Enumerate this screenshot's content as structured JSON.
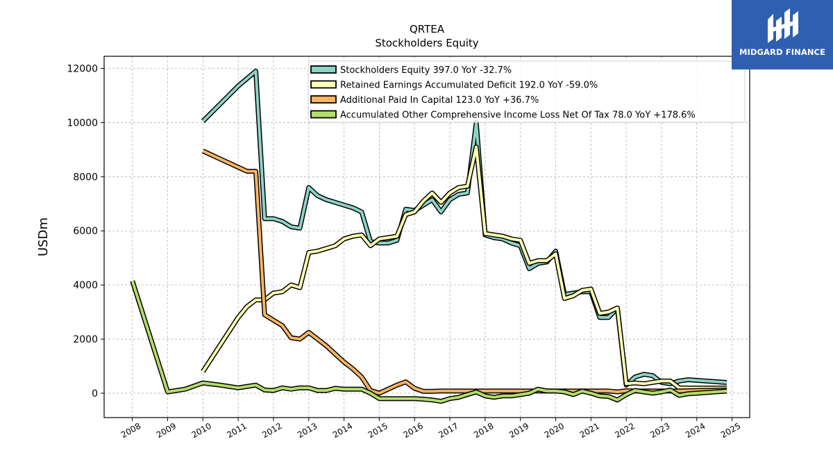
{
  "title": "QRTEA",
  "subtitle": "Stockholders  Equity",
  "brand": {
    "name": "MIDGARD FINANCE",
    "color": "#2f5fb0"
  },
  "chart_data": {
    "type": "line",
    "ylabel": "USDm",
    "xlabel": "",
    "xlim": [
      2007.2,
      2025.5
    ],
    "ylim": [
      -900,
      12450
    ],
    "yticks": [
      0,
      2000,
      4000,
      6000,
      8000,
      10000,
      12000
    ],
    "xticks": [
      2008,
      2009,
      2010,
      2011,
      2012,
      2013,
      2014,
      2015,
      2016,
      2017,
      2018,
      2019,
      2020,
      2021,
      2022,
      2023,
      2024,
      2025
    ],
    "grid": true,
    "legend_position": "top-right",
    "series": [
      {
        "name": "Stockholders Equity  397.0 YoY -32.7%",
        "color": "#8dd3c7",
        "points": [
          [
            2010,
            10050
          ],
          [
            2010.5,
            10700
          ],
          [
            2011,
            11350
          ],
          [
            2011.5,
            11900
          ],
          [
            2011.75,
            6450
          ],
          [
            2012,
            6450
          ],
          [
            2012.25,
            6350
          ],
          [
            2012.5,
            6150
          ],
          [
            2012.75,
            6100
          ],
          [
            2013,
            7600
          ],
          [
            2013.25,
            7300
          ],
          [
            2013.5,
            7150
          ],
          [
            2013.75,
            7050
          ],
          [
            2014,
            6950
          ],
          [
            2014.25,
            6850
          ],
          [
            2014.5,
            6700
          ],
          [
            2014.75,
            5600
          ],
          [
            2015,
            5550
          ],
          [
            2015.25,
            5550
          ],
          [
            2015.5,
            5650
          ],
          [
            2015.75,
            6800
          ],
          [
            2016,
            6750
          ],
          [
            2016.25,
            6950
          ],
          [
            2016.5,
            7150
          ],
          [
            2016.75,
            6700
          ],
          [
            2017,
            7150
          ],
          [
            2017.25,
            7350
          ],
          [
            2017.5,
            7400
          ],
          [
            2017.75,
            10000
          ],
          [
            2018,
            5850
          ],
          [
            2018.25,
            5750
          ],
          [
            2018.5,
            5700
          ],
          [
            2018.75,
            5550
          ],
          [
            2019,
            5450
          ],
          [
            2019.25,
            4600
          ],
          [
            2019.5,
            4800
          ],
          [
            2019.75,
            4850
          ],
          [
            2020,
            5250
          ],
          [
            2020.25,
            3650
          ],
          [
            2020.5,
            3700
          ],
          [
            2020.75,
            3750
          ],
          [
            2021,
            3750
          ],
          [
            2021.25,
            2800
          ],
          [
            2021.5,
            2800
          ],
          [
            2021.75,
            3150
          ],
          [
            2022,
            300
          ],
          [
            2022.25,
            600
          ],
          [
            2022.5,
            700
          ],
          [
            2022.75,
            650
          ],
          [
            2023,
            400
          ],
          [
            2023.25,
            350
          ],
          [
            2023.5,
            450
          ],
          [
            2023.75,
            500
          ],
          [
            2024.85,
            397
          ]
        ]
      },
      {
        "name": "Retained Earnings Accumulated Deficit  192.0 YoY -59.0%",
        "color": "#ffffb3",
        "points": [
          [
            2010,
            800
          ],
          [
            2010.5,
            1800
          ],
          [
            2011,
            2800
          ],
          [
            2011.25,
            3200
          ],
          [
            2011.5,
            3450
          ],
          [
            2011.75,
            3450
          ],
          [
            2012,
            3700
          ],
          [
            2012.25,
            3750
          ],
          [
            2012.5,
            4000
          ],
          [
            2012.75,
            3900
          ],
          [
            2013,
            5200
          ],
          [
            2013.25,
            5250
          ],
          [
            2013.5,
            5350
          ],
          [
            2013.75,
            5450
          ],
          [
            2014,
            5700
          ],
          [
            2014.25,
            5800
          ],
          [
            2014.5,
            5850
          ],
          [
            2014.75,
            5450
          ],
          [
            2015,
            5700
          ],
          [
            2015.25,
            5750
          ],
          [
            2015.5,
            5800
          ],
          [
            2015.75,
            6600
          ],
          [
            2016,
            6700
          ],
          [
            2016.25,
            7100
          ],
          [
            2016.5,
            7400
          ],
          [
            2016.75,
            7050
          ],
          [
            2017,
            7400
          ],
          [
            2017.25,
            7600
          ],
          [
            2017.5,
            7650
          ],
          [
            2017.75,
            9100
          ],
          [
            2018,
            5900
          ],
          [
            2018.25,
            5850
          ],
          [
            2018.5,
            5800
          ],
          [
            2018.75,
            5700
          ],
          [
            2019,
            5650
          ],
          [
            2019.25,
            4800
          ],
          [
            2019.5,
            4900
          ],
          [
            2019.75,
            4900
          ],
          [
            2020,
            5150
          ],
          [
            2020.25,
            3500
          ],
          [
            2020.5,
            3600
          ],
          [
            2020.75,
            3800
          ],
          [
            2021,
            3850
          ],
          [
            2021.25,
            2950
          ],
          [
            2021.5,
            3000
          ],
          [
            2021.75,
            3150
          ],
          [
            2022,
            350
          ],
          [
            2022.25,
            380
          ],
          [
            2022.5,
            350
          ],
          [
            2022.75,
            400
          ],
          [
            2023,
            450
          ],
          [
            2023.25,
            450
          ],
          [
            2023.5,
            200
          ],
          [
            2023.75,
            190
          ],
          [
            2024.85,
            192
          ]
        ]
      },
      {
        "name": "Additional Paid In Capital  123.0 YoY +36.7%",
        "color": "#fdb462",
        "points": [
          [
            2010,
            8950
          ],
          [
            2010.5,
            8650
          ],
          [
            2011,
            8350
          ],
          [
            2011.25,
            8200
          ],
          [
            2011.5,
            8200
          ],
          [
            2011.75,
            2900
          ],
          [
            2012,
            2700
          ],
          [
            2012.25,
            2500
          ],
          [
            2012.5,
            2050
          ],
          [
            2012.75,
            2000
          ],
          [
            2013,
            2250
          ],
          [
            2013.25,
            2000
          ],
          [
            2013.5,
            1750
          ],
          [
            2013.75,
            1450
          ],
          [
            2014,
            1150
          ],
          [
            2014.25,
            900
          ],
          [
            2014.5,
            600
          ],
          [
            2014.75,
            100
          ],
          [
            2015,
            0
          ],
          [
            2015.25,
            150
          ],
          [
            2015.5,
            300
          ],
          [
            2015.75,
            420
          ],
          [
            2016,
            180
          ],
          [
            2016.25,
            70
          ],
          [
            2016.5,
            70
          ],
          [
            2016.75,
            80
          ],
          [
            2017,
            80
          ],
          [
            2017.25,
            80
          ],
          [
            2017.5,
            80
          ],
          [
            2017.75,
            80
          ],
          [
            2018,
            80
          ],
          [
            2018.25,
            80
          ],
          [
            2018.5,
            80
          ],
          [
            2018.75,
            80
          ],
          [
            2019,
            80
          ],
          [
            2019.25,
            80
          ],
          [
            2019.5,
            80
          ],
          [
            2019.75,
            80
          ],
          [
            2020,
            80
          ],
          [
            2020.25,
            80
          ],
          [
            2020.5,
            80
          ],
          [
            2020.75,
            80
          ],
          [
            2021,
            80
          ],
          [
            2021.25,
            80
          ],
          [
            2021.5,
            80
          ],
          [
            2021.75,
            50
          ],
          [
            2022,
            90
          ],
          [
            2022.25,
            80
          ],
          [
            2022.5,
            80
          ],
          [
            2022.75,
            80
          ],
          [
            2023,
            80
          ],
          [
            2023.25,
            80
          ],
          [
            2023.5,
            80
          ],
          [
            2023.75,
            90
          ],
          [
            2024.85,
            123
          ]
        ]
      },
      {
        "name": "Accumulated Other Comprehensive Income Loss Net Of Tax  78.0 YoY +178.6%",
        "color": "#b3de69",
        "points": [
          [
            2008,
            4150
          ],
          [
            2009,
            50
          ],
          [
            2009.5,
            150
          ],
          [
            2010,
            380
          ],
          [
            2010.5,
            300
          ],
          [
            2011,
            200
          ],
          [
            2011.25,
            250
          ],
          [
            2011.5,
            300
          ],
          [
            2011.75,
            120
          ],
          [
            2012,
            100
          ],
          [
            2012.25,
            200
          ],
          [
            2012.5,
            150
          ],
          [
            2012.75,
            200
          ],
          [
            2013,
            200
          ],
          [
            2013.25,
            100
          ],
          [
            2013.5,
            100
          ],
          [
            2013.75,
            180
          ],
          [
            2014,
            150
          ],
          [
            2014.25,
            150
          ],
          [
            2014.5,
            150
          ],
          [
            2014.75,
            0
          ],
          [
            2015,
            -200
          ],
          [
            2015.25,
            -200
          ],
          [
            2015.5,
            -200
          ],
          [
            2015.75,
            -200
          ],
          [
            2016,
            -200
          ],
          [
            2016.25,
            -220
          ],
          [
            2016.5,
            -250
          ],
          [
            2016.75,
            -300
          ],
          [
            2017,
            -200
          ],
          [
            2017.25,
            -150
          ],
          [
            2017.5,
            -50
          ],
          [
            2017.75,
            50
          ],
          [
            2018,
            -100
          ],
          [
            2018.25,
            -150
          ],
          [
            2018.5,
            -100
          ],
          [
            2018.75,
            -100
          ],
          [
            2019,
            -50
          ],
          [
            2019.25,
            0
          ],
          [
            2019.5,
            150
          ],
          [
            2019.75,
            80
          ],
          [
            2020,
            80
          ],
          [
            2020.25,
            50
          ],
          [
            2020.5,
            -50
          ],
          [
            2020.75,
            80
          ],
          [
            2021,
            0
          ],
          [
            2021.25,
            -100
          ],
          [
            2021.5,
            -120
          ],
          [
            2021.75,
            -250
          ],
          [
            2022,
            -50
          ],
          [
            2022.25,
            100
          ],
          [
            2022.5,
            50
          ],
          [
            2022.75,
            0
          ],
          [
            2023,
            50
          ],
          [
            2023.25,
            120
          ],
          [
            2023.5,
            -80
          ],
          [
            2023.75,
            -20
          ],
          [
            2024.85,
            78
          ]
        ]
      }
    ]
  }
}
